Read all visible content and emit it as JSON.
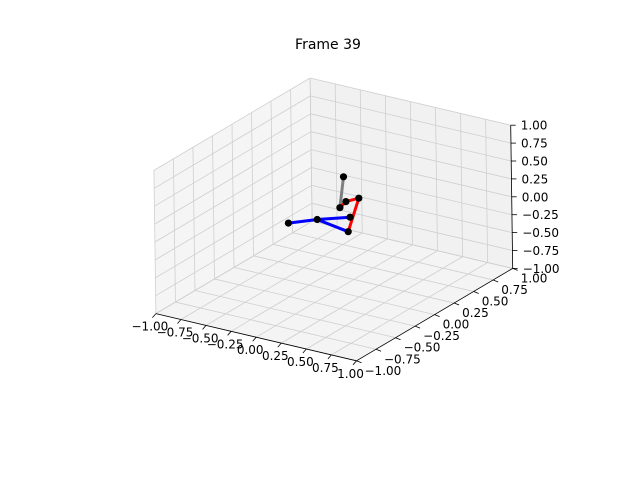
{
  "chart_data": {
    "type": "line3d",
    "title": "Frame 39",
    "xlim": [
      -1.0,
      1.0
    ],
    "ylim": [
      -1.0,
      1.0
    ],
    "zlim": [
      -1.0,
      1.0
    ],
    "x_tick_labels": [
      "−1.00",
      "−0.75",
      "−0.50",
      "−0.25",
      "0.00",
      "0.25",
      "0.50",
      "0.75",
      "1.00"
    ],
    "y_tick_labels": [
      "−1.00",
      "−0.75",
      "−0.50",
      "−0.25",
      "0.00",
      "0.25",
      "0.50",
      "0.75",
      "1.00"
    ],
    "z_tick_labels": [
      "−1.00",
      "−0.75",
      "−0.50",
      "−0.25",
      "0.00",
      "0.25",
      "0.50",
      "0.75",
      "1.00"
    ],
    "grid": true,
    "colors": {
      "pane_left": "#f5f5f5",
      "pane_back": "#f1f1f1",
      "pane_floor": "#f4f4f4",
      "grid": "#cfcfcf",
      "axis": "#000000",
      "blue_limb": "#0000ff",
      "red_limb": "#ff0000",
      "torso": "#808080",
      "joint": "#000000"
    },
    "joints": [
      {
        "x": -0.05,
        "y": 0.2,
        "z": 0.45
      },
      {
        "x": -0.05,
        "y": 0.15,
        "z": 0.05
      },
      {
        "x": -0.45,
        "y": 0.0,
        "z": -0.2
      },
      {
        "x": -0.2,
        "y": 0.05,
        "z": -0.1
      },
      {
        "x": 0.05,
        "y": 0.15,
        "z": -0.05
      },
      {
        "x": -0.05,
        "y": 0.25,
        "z": -0.35
      },
      {
        "x": 0.05,
        "y": 0.1,
        "z": 0.2
      },
      {
        "x": 0.1,
        "y": 0.2,
        "z": 0.2
      }
    ],
    "segments": [
      {
        "from": 0,
        "to": 1,
        "color": "torso"
      },
      {
        "from": 1,
        "to": 6,
        "color": "torso"
      },
      {
        "from": 2,
        "to": 3,
        "color": "blue_limb"
      },
      {
        "from": 3,
        "to": 4,
        "color": "blue_limb"
      },
      {
        "from": 3,
        "to": 5,
        "color": "blue_limb"
      },
      {
        "from": 5,
        "to": 7,
        "color": "red_limb"
      },
      {
        "from": 7,
        "to": 6,
        "color": "red_limb"
      },
      {
        "from": 6,
        "to": 1,
        "color": "red_limb"
      }
    ]
  }
}
